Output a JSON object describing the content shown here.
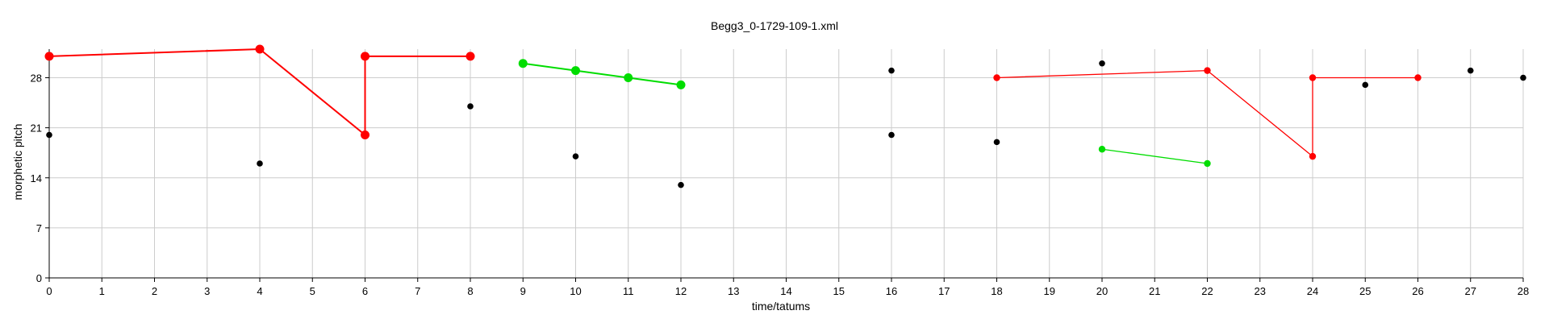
{
  "chart_data": {
    "type": "scatter",
    "title": "Begg3_0-1729-109-1.xml",
    "xlabel": "time/tatums",
    "ylabel": "morphetic pitch",
    "xlim": [
      0,
      28
    ],
    "ylim": [
      0,
      32
    ],
    "x_ticks": [
      0,
      1,
      2,
      3,
      4,
      5,
      6,
      7,
      8,
      9,
      10,
      11,
      12,
      13,
      14,
      15,
      16,
      17,
      18,
      19,
      20,
      21,
      22,
      23,
      24,
      25,
      26,
      27,
      28
    ],
    "y_ticks": [
      0,
      7,
      14,
      21,
      28
    ],
    "grid": true,
    "colors": {
      "red": "#ff0000",
      "green": "#00dd00",
      "black": "#000000",
      "grid": "#cccccc"
    },
    "lines": [
      {
        "color": "red",
        "size": "large",
        "points": [
          [
            0,
            31
          ],
          [
            4,
            32
          ],
          [
            6,
            20
          ],
          [
            6,
            31
          ],
          [
            8,
            31
          ]
        ]
      },
      {
        "color": "green",
        "size": "large",
        "points": [
          [
            9,
            30
          ],
          [
            10,
            29
          ],
          [
            11,
            28
          ],
          [
            12,
            27
          ]
        ]
      },
      {
        "color": "red",
        "size": "small",
        "points": [
          [
            18,
            28
          ],
          [
            22,
            29
          ],
          [
            24,
            17
          ],
          [
            24,
            28
          ],
          [
            26,
            28
          ]
        ]
      },
      {
        "color": "green",
        "size": "small",
        "points": [
          [
            20,
            18
          ],
          [
            22,
            16
          ]
        ]
      }
    ],
    "points": [
      {
        "x": 0,
        "y": 20
      },
      {
        "x": 4,
        "y": 16
      },
      {
        "x": 8,
        "y": 24
      },
      {
        "x": 10,
        "y": 17
      },
      {
        "x": 12,
        "y": 13
      },
      {
        "x": 16,
        "y": 29
      },
      {
        "x": 16,
        "y": 20
      },
      {
        "x": 18,
        "y": 19
      },
      {
        "x": 20,
        "y": 30
      },
      {
        "x": 25,
        "y": 27
      },
      {
        "x": 27,
        "y": 29
      },
      {
        "x": 28,
        "y": 28
      }
    ]
  }
}
